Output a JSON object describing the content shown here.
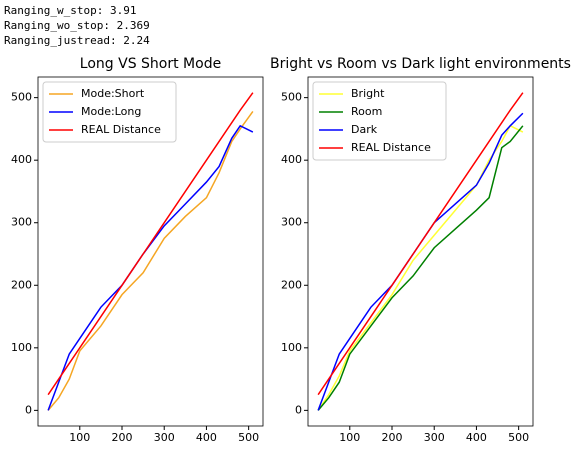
{
  "header": [
    "Ranging_w_stop:  3.91",
    "Ranging_wo_stop:  2.369",
    "Ranging_justread:  2.24"
  ],
  "chart_data": [
    {
      "type": "line",
      "title": "Long VS Short Mode",
      "x": [
        25,
        50,
        75,
        100,
        150,
        200,
        250,
        300,
        350,
        400,
        430,
        460,
        480,
        510
      ],
      "series": [
        {
          "name": "Mode:Short",
          "color": "#f5a623",
          "values": [
            0,
            20,
            50,
            95,
            135,
            185,
            220,
            275,
            310,
            340,
            380,
            430,
            450,
            478
          ]
        },
        {
          "name": "Mode:Long",
          "color": "#0000ff",
          "values": [
            0,
            45,
            90,
            115,
            165,
            200,
            250,
            295,
            330,
            365,
            390,
            435,
            455,
            445
          ]
        },
        {
          "name": "REAL Distance",
          "color": "#ff0000",
          "values": [
            25,
            50,
            75,
            100,
            150,
            200,
            250,
            300,
            350,
            400,
            430,
            460,
            480,
            508
          ]
        }
      ],
      "xlim": [
        1,
        534
      ],
      "ylim": [
        -25,
        533
      ],
      "xticks": [
        100,
        200,
        300,
        400,
        500
      ],
      "yticks": [
        0,
        100,
        200,
        300,
        400,
        500
      ],
      "legend": "upper left"
    },
    {
      "type": "line",
      "title": "Bright vs Room vs Dark light environments",
      "x": [
        25,
        50,
        75,
        100,
        150,
        200,
        250,
        300,
        350,
        400,
        430,
        460,
        480,
        510
      ],
      "series": [
        {
          "name": "Bright",
          "color": "#ffff33",
          "values": [
            0,
            25,
            55,
            95,
            140,
            185,
            240,
            280,
            320,
            360,
            400,
            430,
            455,
            445
          ]
        },
        {
          "name": "Room",
          "color": "#008000",
          "values": [
            0,
            20,
            45,
            90,
            135,
            180,
            215,
            260,
            290,
            320,
            340,
            420,
            430,
            455
          ]
        },
        {
          "name": "Dark",
          "color": "#0000ff",
          "values": [
            0,
            45,
            90,
            115,
            165,
            200,
            250,
            300,
            330,
            360,
            395,
            440,
            455,
            475
          ]
        },
        {
          "name": "REAL Distance",
          "color": "#ff0000",
          "values": [
            25,
            50,
            75,
            100,
            150,
            200,
            250,
            300,
            350,
            400,
            430,
            460,
            480,
            508
          ]
        }
      ],
      "xlim": [
        1,
        534
      ],
      "ylim": [
        -25,
        533
      ],
      "xticks": [
        100,
        200,
        300,
        400,
        500
      ],
      "yticks": [
        0,
        100,
        200,
        300,
        400,
        500
      ],
      "legend": "upper left"
    }
  ]
}
